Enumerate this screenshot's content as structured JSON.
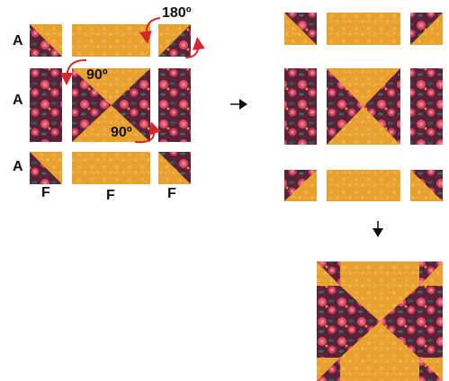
{
  "labels": {
    "row_a1": "A",
    "row_a2": "A",
    "row_a3": "A",
    "col_f1": "F",
    "col_f2": "F",
    "col_f3": "F",
    "rotate_180": "180º",
    "rotate_90_top": "90º",
    "rotate_90_bottom": "90º"
  },
  "colors": {
    "gold": "#e8a12e",
    "gold_light": "#f2bd55",
    "floral_dark": "#5a2138",
    "floral_pink": "#e0546a",
    "floral_green": "#2f5a52",
    "arrow_red": "#d5262e"
  },
  "icons": {
    "right_arrow": "arrow-right-icon",
    "down_arrow": "arrow-down-icon",
    "rotate_arrows": "curved-rotate-arrow-icon"
  }
}
